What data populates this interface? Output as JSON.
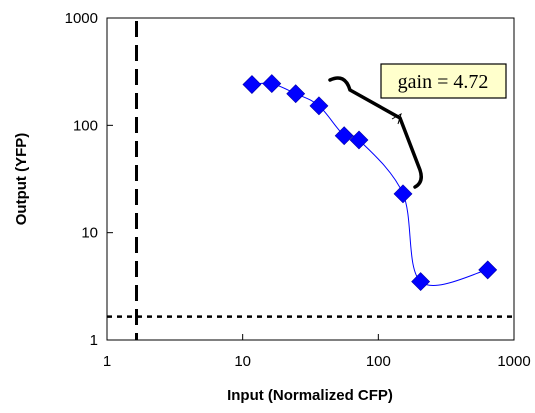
{
  "chart_data": {
    "type": "scatter",
    "xscale": "log",
    "yscale": "log",
    "xlim": [
      1,
      1000
    ],
    "ylim": [
      1,
      1000
    ],
    "xticks": [
      "1",
      "10",
      "100",
      "1000"
    ],
    "yticks": [
      "1",
      "10",
      "100",
      "1000"
    ],
    "xlabel": "Input (Normalized CFP)",
    "ylabel": "Output (YFP)",
    "grid": false,
    "marker_color": "#0000ff",
    "line_color": "#0000ff",
    "series": [
      {
        "x": [
          11.7,
          16.4,
          24.6,
          36.5,
          56,
          72,
          152,
          205,
          640
        ],
        "y": [
          240,
          245,
          197,
          152,
          80,
          73,
          23,
          3.5,
          4.5
        ]
      }
    ],
    "reference_lines": [
      {
        "orientation": "vertical",
        "x": 1.65,
        "style": "dashed"
      },
      {
        "orientation": "horizontal",
        "y": 1.65,
        "style": "dotted"
      }
    ],
    "annotation": {
      "text": "gain = 4.72"
    }
  }
}
